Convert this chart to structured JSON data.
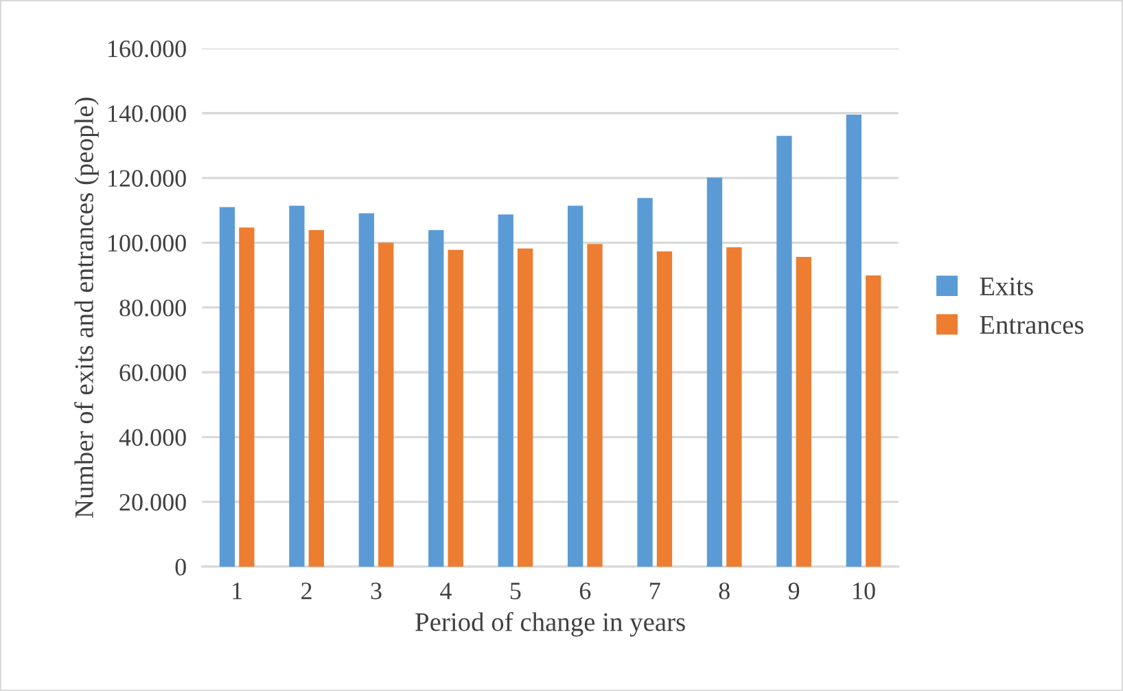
{
  "chart_data": {
    "type": "bar",
    "xlabel": "Period of change in years",
    "ylabel": "Number of exits and entrances (people)",
    "categories": [
      "1",
      "2",
      "3",
      "4",
      "5",
      "6",
      "7",
      "8",
      "9",
      "10"
    ],
    "series": [
      {
        "name": "Exits",
        "color": "#5b9bd5",
        "values": [
          111000,
          111400,
          109100,
          103900,
          108700,
          111400,
          113800,
          120100,
          133000,
          139500
        ]
      },
      {
        "name": "Entrances",
        "color": "#ed7d31",
        "values": [
          104700,
          103900,
          100000,
          97800,
          98200,
          99600,
          97300,
          98600,
          95600,
          89900
        ]
      }
    ],
    "ylim": [
      0,
      160000
    ],
    "yticks": [
      0,
      {
        "value": 20000,
        "label": "20.000"
      },
      {
        "value": 40000,
        "label": "40.000"
      },
      {
        "value": 60000,
        "label": "60.000"
      },
      {
        "value": 80000,
        "label": "80.000"
      },
      {
        "value": 100000,
        "label": "100.000"
      },
      {
        "value": 120000,
        "label": "120.000"
      },
      {
        "value": 140000,
        "label": "140.000"
      },
      {
        "value": 160000,
        "label": "160.000"
      }
    ],
    "grid": "y",
    "legend": "right"
  }
}
